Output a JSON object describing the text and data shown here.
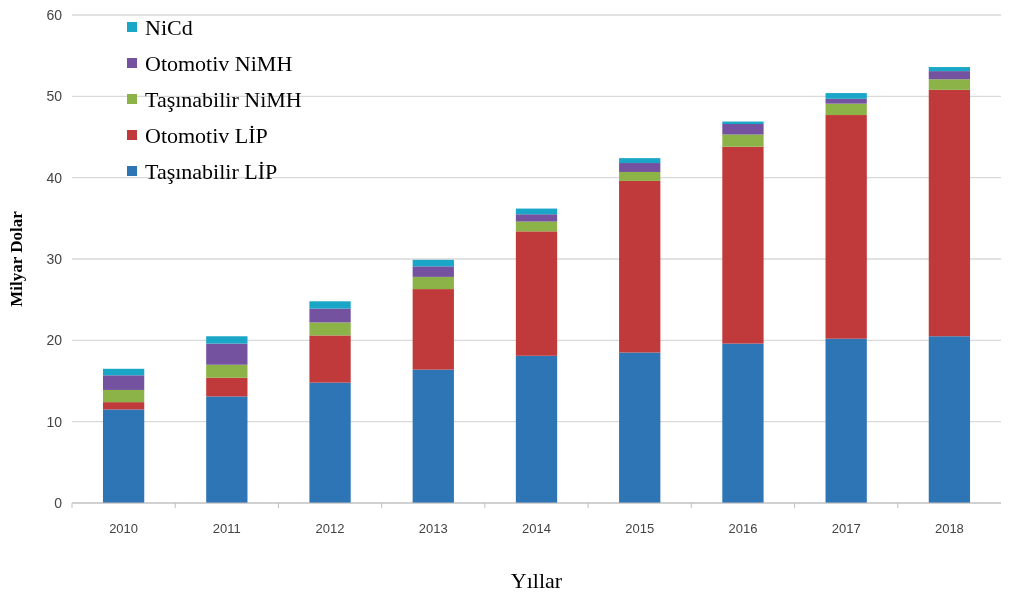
{
  "chart_data": {
    "type": "bar",
    "stacked": true,
    "xlabel": "Yıllar",
    "ylabel": "Milyar Dolar",
    "categories": [
      "2010",
      "2011",
      "2012",
      "2013",
      "2014",
      "2015",
      "2016",
      "2017",
      "2018"
    ],
    "series": [
      {
        "name": "Taşınabilir LİP",
        "color": "#2e75b6",
        "values": [
          11.5,
          13.1,
          14.8,
          16.4,
          18.1,
          18.5,
          19.6,
          20.2,
          20.5
        ]
      },
      {
        "name": "Otomotiv LİP",
        "color": "#c0393b",
        "values": [
          0.9,
          2.3,
          5.8,
          9.9,
          15.3,
          21.1,
          24.2,
          27.5,
          30.3
        ]
      },
      {
        "name": "Taşınabilir NiMH",
        "color": "#8cb347",
        "values": [
          1.5,
          1.6,
          1.6,
          1.5,
          1.2,
          1.1,
          1.5,
          1.4,
          1.3
        ]
      },
      {
        "name": "Otomotiv NiMH",
        "color": "#7452a0",
        "values": [
          1.8,
          2.6,
          1.7,
          1.3,
          0.9,
          1.1,
          1.3,
          0.6,
          1.0
        ]
      },
      {
        "name": "NiCd",
        "color": "#1aa6c6",
        "values": [
          0.8,
          0.9,
          0.9,
          0.8,
          0.7,
          0.6,
          0.3,
          0.7,
          0.5
        ]
      }
    ],
    "ylim": [
      0,
      60
    ],
    "yticks": [
      0,
      10,
      20,
      30,
      40,
      50,
      60
    ],
    "grid": "y",
    "legend": "top left"
  }
}
